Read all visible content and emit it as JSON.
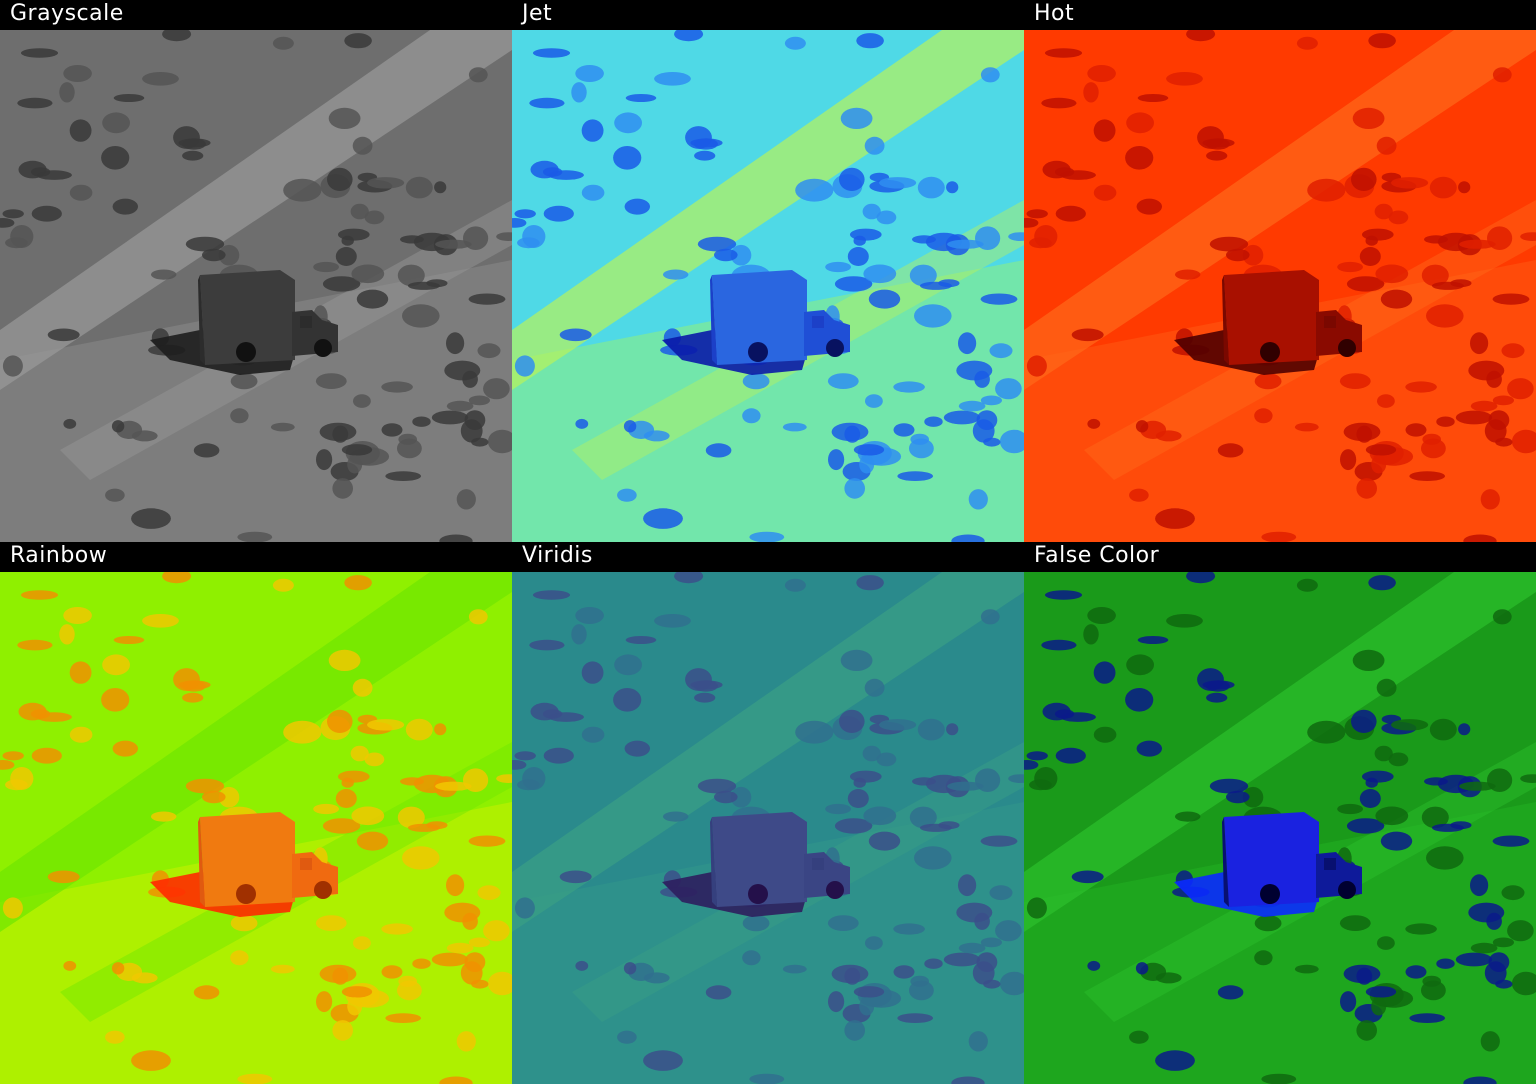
{
  "panels": [
    {
      "label": "Grayscale",
      "colors": {
        "bg": "#6e6e6e",
        "bg2": "#8a8a8a",
        "road": "#9a9a9a",
        "brush": "#3a3a3a",
        "brush2": "#555555",
        "box": "#3c3c3c",
        "boxSide": "#2c2c2c",
        "cab": "#333333",
        "shadow": "#1e1e1e",
        "wheel": "#111111"
      }
    },
    {
      "label": "Jet",
      "colors": {
        "bg": "#4fd9e6",
        "bg2": "#8ff07a",
        "road": "#b8f25a",
        "brush": "#1a5ae6",
        "brush2": "#2f8ef0",
        "box": "#2a66e0",
        "boxSide": "#1c40c8",
        "cab": "#1f4fd6",
        "shadow": "#0a1aa8",
        "wheel": "#081260"
      }
    },
    {
      "label": "Hot",
      "colors": {
        "bg": "#ff3a00",
        "bg2": "#ff5a12",
        "road": "#ff6a1a",
        "brush": "#c01000",
        "brush2": "#e02000",
        "box": "#a81000",
        "boxSide": "#7a0800",
        "cab": "#8a0a00",
        "shadow": "#500000",
        "wheel": "#300000"
      }
    },
    {
      "label": "Rainbow",
      "colors": {
        "bg": "#8ff000",
        "bg2": "#c8f000",
        "road": "#6ee600",
        "brush": "#f09000",
        "brush2": "#f0c800",
        "box": "#f07a10",
        "boxSide": "#e05a10",
        "cab": "#f06a10",
        "shadow": "#ff2a00",
        "wheel": "#a03000"
      }
    },
    {
      "label": "Viridis",
      "colors": {
        "bg": "#2a8a8c",
        "bg2": "#31988a",
        "road": "#3aa084",
        "brush": "#3b4f8a",
        "brush2": "#30708e",
        "box": "#3e4a88",
        "boxSide": "#35407e",
        "cab": "#3a4584",
        "shadow": "#2e1e5e",
        "wheel": "#24104a"
      }
    },
    {
      "label": "False Color",
      "colors": {
        "bg": "#1a9a1a",
        "bg2": "#22b022",
        "road": "#2cc02c",
        "brush": "#0a1a8a",
        "brush2": "#0f6a0f",
        "box": "#1a22e0",
        "boxSide": "#081070",
        "cab": "#0e1a9a",
        "shadow": "#0a2aff",
        "wheel": "#000030"
      }
    }
  ]
}
